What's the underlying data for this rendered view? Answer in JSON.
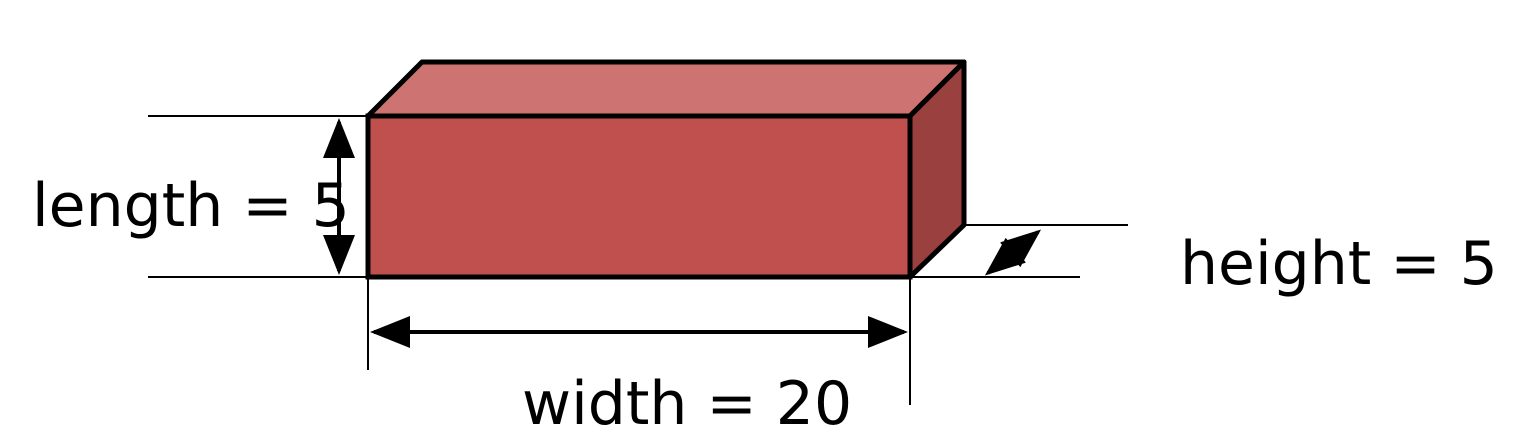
{
  "diagram": {
    "labels": {
      "length": "length = 5",
      "width": "width = 20",
      "height": "height = 5"
    },
    "colors": {
      "front_face": "#c0504d",
      "top_face": "#cd7371",
      "side_face": "#9a403e",
      "outline": "#000000"
    }
  }
}
